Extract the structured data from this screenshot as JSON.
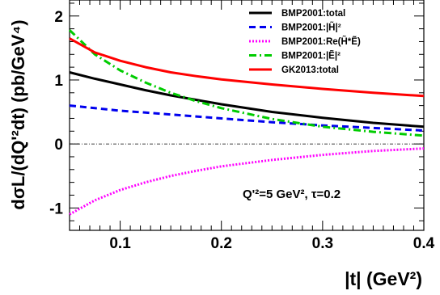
{
  "chart_data": {
    "type": "line",
    "xlabel": "|t| (GeV²)",
    "ylabel": "dσL/(dQ'²dt) (pb/GeV⁴)",
    "xlim": [
      0.05,
      0.4
    ],
    "ylim": [
      -1.35,
      2.25
    ],
    "xticks": [
      "0.1",
      "0.2",
      "0.3",
      "0.4"
    ],
    "yticks": [
      "-1",
      "0",
      "1",
      "2"
    ],
    "x_tick_values": [
      0.1,
      0.2,
      0.3,
      0.4
    ],
    "y_tick_values": [
      -1,
      0,
      1,
      2
    ],
    "grid": false,
    "legend_position": "top-right",
    "annotation": "Q'²=5 GeV², τ=0.2",
    "x": [
      0.05,
      0.075,
      0.1,
      0.125,
      0.15,
      0.175,
      0.2,
      0.25,
      0.3,
      0.35,
      0.4
    ],
    "series": [
      {
        "name": "BMP2001:total",
        "color": "#000000",
        "style": "solid",
        "values": [
          1.12,
          1.02,
          0.93,
          0.84,
          0.76,
          0.69,
          0.62,
          0.5,
          0.41,
          0.33,
          0.27
        ]
      },
      {
        "name": "BMP2001:|H̃|²",
        "color": "#0000ee",
        "style": "dashed",
        "values": [
          0.6,
          0.56,
          0.52,
          0.49,
          0.46,
          0.43,
          0.4,
          0.34,
          0.29,
          0.25,
          0.21
        ]
      },
      {
        "name": "BMP2001:Re(H̃*Ẽ)",
        "color": "#ff00ff",
        "style": "dotted",
        "values": [
          -1.1,
          -0.88,
          -0.72,
          -0.6,
          -0.5,
          -0.42,
          -0.35,
          -0.25,
          -0.17,
          -0.11,
          -0.07
        ]
      },
      {
        "name": "BMP2001:|Ẽ|²",
        "color": "#00cc00",
        "style": "dashdot",
        "values": [
          1.78,
          1.4,
          1.15,
          0.96,
          0.8,
          0.67,
          0.56,
          0.39,
          0.27,
          0.19,
          0.13
        ]
      },
      {
        "name": "GK2013:total",
        "color": "#ff0000",
        "style": "solid",
        "values": [
          1.65,
          1.43,
          1.3,
          1.2,
          1.12,
          1.06,
          1.01,
          0.93,
          0.86,
          0.8,
          0.75
        ]
      }
    ]
  }
}
